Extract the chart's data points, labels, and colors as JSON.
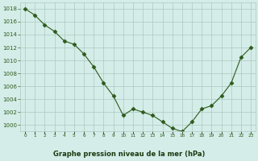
{
  "x": [
    0,
    1,
    2,
    3,
    4,
    5,
    6,
    7,
    8,
    9,
    10,
    11,
    12,
    13,
    14,
    15,
    16,
    17,
    18,
    19,
    20,
    21,
    22,
    23
  ],
  "y": [
    1018,
    1017,
    1015.5,
    1014.5,
    1013,
    1012.5,
    1011,
    1009,
    1006.5,
    1004.5,
    1001.5,
    1002.5,
    1002,
    1001.5,
    1000.5,
    999.5,
    999,
    1000.5,
    1002.5,
    1003,
    1004.5,
    1006.5,
    1010.5,
    1012
  ],
  "line_color": "#2d5a1b",
  "marker_color": "#2d5a1b",
  "bg_color": "#d4ede8",
  "grid_color": "#adc8c0",
  "xlabel": "Graphe pression niveau de la mer (hPa)",
  "xlabel_color": "#1a3a10",
  "ylim_min": 999,
  "ylim_max": 1019,
  "ytick_step": 2,
  "xtick_labels": [
    "0",
    "1",
    "2",
    "3",
    "4",
    "5",
    "6",
    "7",
    "8",
    "9",
    "10",
    "11",
    "12",
    "13",
    "14",
    "15",
    "16",
    "17",
    "18",
    "19",
    "20",
    "21",
    "22",
    "23"
  ]
}
